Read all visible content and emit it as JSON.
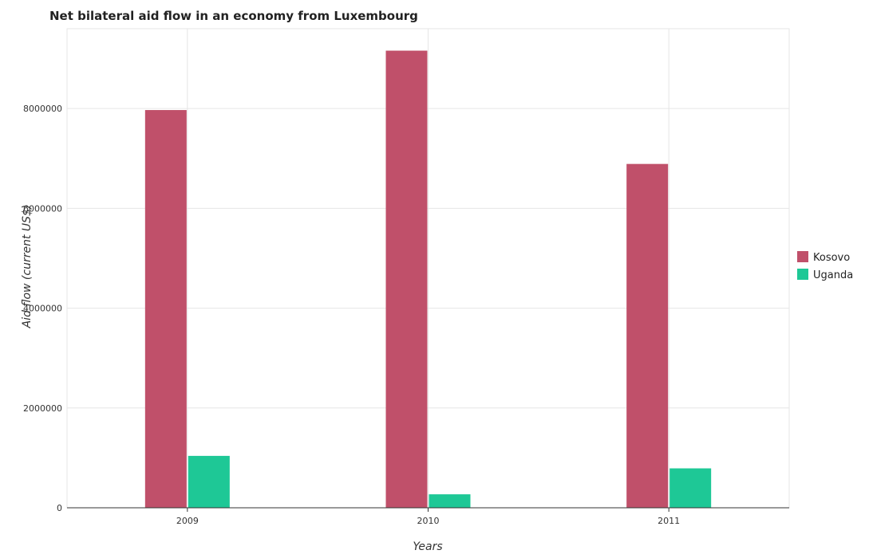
{
  "chart_data": {
    "type": "bar",
    "title": "Net bilateral aid flow in an economy from Luxembourg",
    "xlabel": "Years",
    "ylabel": "Aid flow (current US$)",
    "categories": [
      "2009",
      "2010",
      "2011"
    ],
    "series": [
      {
        "name": "Kosovo",
        "color": "#c0506a",
        "values": [
          7970000,
          9160000,
          6890000
        ]
      },
      {
        "name": "Uganda",
        "color": "#1ec896",
        "values": [
          1040000,
          270000,
          790000
        ]
      }
    ],
    "ylim": [
      0,
      9600000
    ],
    "yticks": [
      0,
      2000000,
      4000000,
      6000000,
      8000000
    ],
    "ytick_labels": [
      "0",
      "2000000",
      "4000000",
      "6000000",
      "8000000"
    ],
    "grid": true,
    "legend_position": "right"
  }
}
